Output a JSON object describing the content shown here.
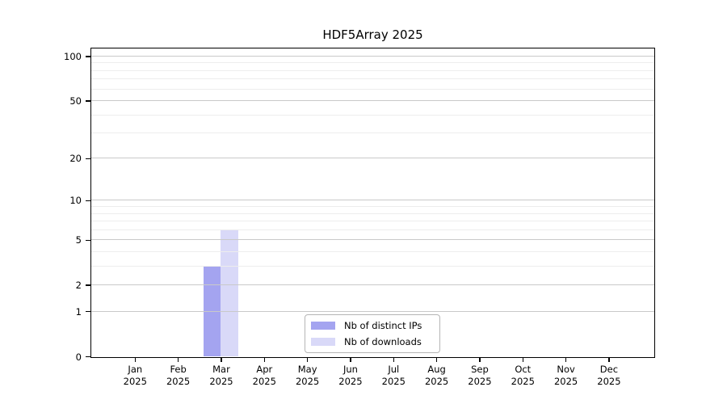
{
  "chart_data": {
    "type": "bar",
    "title": "HDF5Array 2025",
    "xlabel": "",
    "ylabel": "",
    "categories": [
      "Jan",
      "Feb",
      "Mar",
      "Apr",
      "May",
      "Jun",
      "Jul",
      "Aug",
      "Sep",
      "Oct",
      "Nov",
      "Dec"
    ],
    "category_year": "2025",
    "series": [
      {
        "name": "Nb of distinct IPs",
        "color": "#a4a4f0",
        "values": [
          0,
          0,
          3,
          0,
          0,
          0,
          0,
          0,
          0,
          0,
          0,
          0
        ]
      },
      {
        "name": "Nb of downloads",
        "color": "#d9d9f8",
        "values": [
          0,
          0,
          6,
          0,
          0,
          0,
          0,
          0,
          0,
          0,
          0,
          0
        ]
      }
    ],
    "y_axis": {
      "scale": "log1p",
      "ticks": [
        0,
        1,
        2,
        5,
        10,
        20,
        50,
        100
      ],
      "minor_gridlines": [
        3,
        4,
        6,
        7,
        8,
        9,
        30,
        40,
        60,
        70,
        80,
        90
      ],
      "max_tick": 100,
      "ylim": [
        0,
        114
      ]
    },
    "grid": "horizontal",
    "legend_position": "bottom-center",
    "colors": {
      "major_grid": "#c9c9c9",
      "minor_grid": "#ededed",
      "axis": "#000000",
      "background": "#ffffff"
    }
  }
}
